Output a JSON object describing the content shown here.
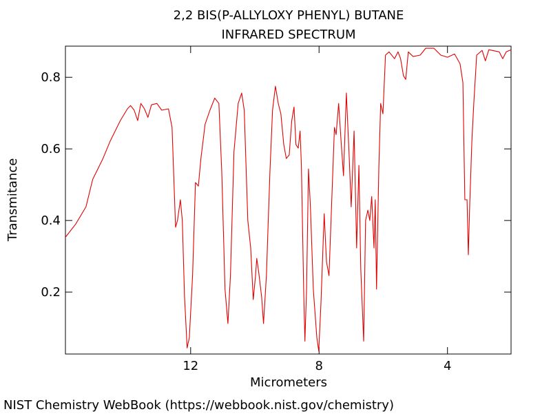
{
  "chart_data": {
    "type": "line",
    "title": "2,2 BIS(P-ALLYLOXY PHENYL) BUTANE",
    "subtitle": "INFRARED SPECTRUM",
    "x_label": "Micrometers",
    "y_label": "Transmitance",
    "footer": "NIST Chemistry WebBook (https://webbook.nist.gov/chemistry)",
    "color": "#e00000",
    "xlim": [
      15.9,
      2.02
    ],
    "ylim": [
      0.027,
      0.887
    ],
    "xticks": [
      12,
      8,
      4
    ],
    "yticks": [
      0.2,
      0.4,
      0.6,
      0.8
    ],
    "x": [
      15.91,
      15.58,
      15.26,
      15.05,
      14.73,
      14.51,
      14.19,
      13.97,
      13.87,
      13.76,
      13.65,
      13.55,
      13.44,
      13.33,
      13.22,
      13.05,
      12.9,
      12.69,
      12.58,
      12.47,
      12.41,
      12.32,
      12.26,
      12.19,
      12.11,
      12.04,
      11.94,
      11.85,
      11.76,
      11.68,
      11.55,
      11.4,
      11.25,
      11.12,
      11.03,
      10.93,
      10.84,
      10.76,
      10.65,
      10.52,
      10.41,
      10.33,
      10.22,
      10.13,
      10.05,
      9.98,
      9.94,
      9.88,
      9.79,
      9.73,
      9.64,
      9.53,
      9.45,
      9.36,
      9.27,
      9.19,
      9.1,
      9.02,
      8.93,
      8.85,
      8.78,
      8.72,
      8.65,
      8.59,
      8.55,
      8.48,
      8.44,
      8.39,
      8.33,
      8.27,
      8.18,
      8.07,
      8.01,
      7.94,
      7.84,
      7.77,
      7.69,
      7.58,
      7.52,
      7.47,
      7.39,
      7.32,
      7.24,
      7.15,
      7.06,
      7.0,
      6.91,
      6.83,
      6.76,
      6.7,
      6.61,
      6.55,
      6.48,
      6.42,
      6.36,
      6.29,
      6.25,
      6.21,
      6.14,
      6.08,
      6.01,
      5.93,
      5.82,
      5.65,
      5.54,
      5.46,
      5.37,
      5.3,
      5.22,
      5.07,
      4.85,
      4.68,
      4.42,
      4.21,
      4.0,
      3.78,
      3.61,
      3.52,
      3.46,
      3.39,
      3.35,
      3.31,
      3.24,
      3.18,
      3.09,
      2.92,
      2.82,
      2.71,
      2.39,
      2.28,
      2.17,
      2.02
    ],
    "values": [
      0.352,
      0.39,
      0.438,
      0.515,
      0.573,
      0.621,
      0.679,
      0.712,
      0.721,
      0.708,
      0.679,
      0.727,
      0.712,
      0.688,
      0.723,
      0.727,
      0.708,
      0.712,
      0.66,
      0.381,
      0.4,
      0.458,
      0.4,
      0.188,
      0.044,
      0.073,
      0.246,
      0.506,
      0.496,
      0.573,
      0.669,
      0.708,
      0.742,
      0.727,
      0.535,
      0.208,
      0.112,
      0.246,
      0.592,
      0.727,
      0.756,
      0.708,
      0.4,
      0.323,
      0.179,
      0.246,
      0.294,
      0.256,
      0.188,
      0.112,
      0.246,
      0.535,
      0.708,
      0.775,
      0.727,
      0.698,
      0.612,
      0.573,
      0.583,
      0.679,
      0.717,
      0.612,
      0.602,
      0.65,
      0.554,
      0.208,
      0.063,
      0.208,
      0.544,
      0.438,
      0.208,
      0.073,
      0.035,
      0.169,
      0.419,
      0.285,
      0.246,
      0.515,
      0.66,
      0.64,
      0.727,
      0.631,
      0.525,
      0.756,
      0.573,
      0.438,
      0.65,
      0.323,
      0.554,
      0.265,
      0.063,
      0.4,
      0.429,
      0.4,
      0.467,
      0.323,
      0.458,
      0.208,
      0.544,
      0.727,
      0.698,
      0.862,
      0.871,
      0.852,
      0.871,
      0.852,
      0.804,
      0.794,
      0.871,
      0.858,
      0.862,
      0.881,
      0.881,
      0.862,
      0.856,
      0.865,
      0.838,
      0.785,
      0.458,
      0.458,
      0.304,
      0.438,
      0.621,
      0.727,
      0.862,
      0.875,
      0.846,
      0.877,
      0.871,
      0.852,
      0.871,
      0.877
    ]
  }
}
